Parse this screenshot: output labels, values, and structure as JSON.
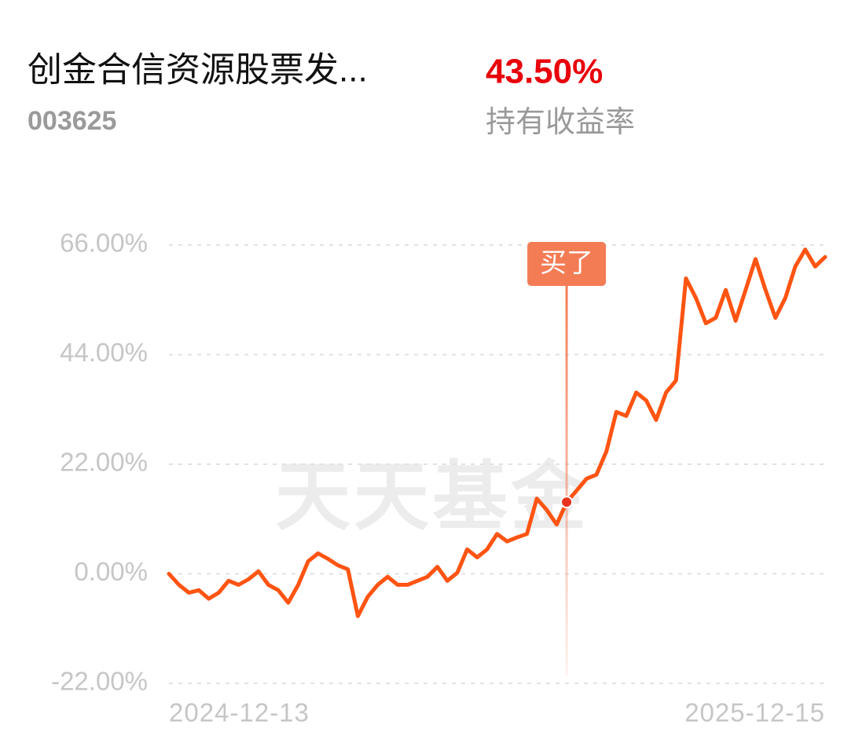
{
  "fund": {
    "name": "创金合信资源股票发...",
    "code": "003625",
    "return": "43.50%",
    "return_label": "持有收益率"
  },
  "watermark": "天天基金",
  "chart_data": {
    "type": "line",
    "categories": [
      "2024-12-13",
      null,
      null,
      null,
      null,
      null,
      null,
      null,
      null,
      null,
      null,
      null,
      null,
      null,
      null,
      null,
      null,
      null,
      null,
      null,
      null,
      null,
      null,
      null,
      null,
      null,
      null,
      null,
      null,
      null,
      null,
      null,
      null,
      null,
      null,
      null,
      null,
      null,
      null,
      null,
      null,
      null,
      null,
      null,
      null,
      null,
      null,
      null,
      null,
      null,
      null,
      null,
      null,
      null,
      null,
      null,
      null,
      null,
      null,
      null,
      null,
      null,
      null,
      null,
      null,
      null,
      "2025-12-15"
    ],
    "series": [
      {
        "name": null,
        "color": "#ff5412",
        "values": [
          0,
          -2.2,
          -3.8,
          -3.3,
          -5,
          -3.8,
          -1.4,
          -2.2,
          -1.1,
          0.5,
          -2.2,
          -3.3,
          -5.8,
          -2.2,
          2.5,
          4.1,
          3,
          1.7,
          0.9,
          -8.5,
          -4.6,
          -2.2,
          -0.6,
          -2.2,
          -2.2,
          -1.4,
          -0.6,
          1.4,
          -1.4,
          0.2,
          4.9,
          3.3,
          4.9,
          8,
          6.5,
          7.3,
          8,
          15.1,
          12.8,
          9.9,
          14.4,
          16.7,
          19.1,
          19.9,
          24.6,
          32.5,
          31.7,
          36.4,
          34.8,
          30.9,
          36.4,
          38.8,
          59.3,
          55.4,
          50.3,
          51.4,
          57,
          50.8,
          57,
          63.2,
          57,
          51.4,
          55.4,
          61.7,
          65.1,
          61.7,
          63.6
        ]
      }
    ],
    "ylim": [
      -22,
      66
    ],
    "yticks": [
      {
        "value": 66,
        "label": "66.00%"
      },
      {
        "value": 44,
        "label": "44.00%"
      },
      {
        "value": 22,
        "label": "22.00%"
      },
      {
        "value": 0,
        "label": "0.00%"
      },
      {
        "value": -22,
        "label": "-22.00%"
      }
    ],
    "grid": true,
    "annotation": "买了",
    "annotation_index": 40
  }
}
